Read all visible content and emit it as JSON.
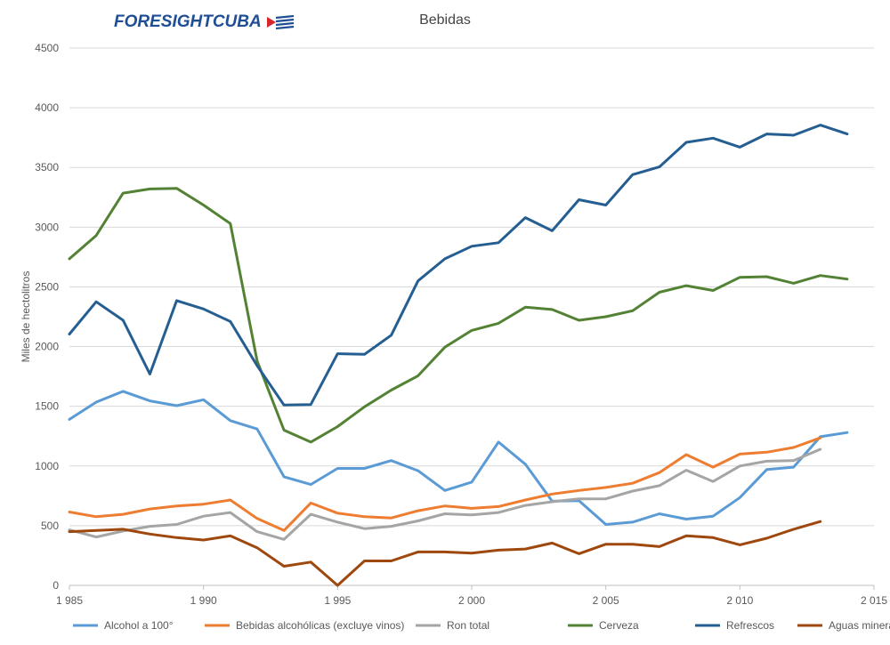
{
  "logo": {
    "text": "FORESIGHTCUBA"
  },
  "chart_data": {
    "type": "line",
    "title": "Bebidas",
    "xlabel": "",
    "ylabel": "Miles de hectolitros",
    "xlim": [
      1985,
      2015
    ],
    "ylim": [
      0,
      4500
    ],
    "x_ticks": [
      1985,
      1990,
      1995,
      2000,
      2005,
      2010,
      2015
    ],
    "x_tick_labels": [
      "1 985",
      "1 990",
      "1 995",
      "2 000",
      "2 005",
      "2 010",
      "2 015"
    ],
    "y_ticks": [
      0,
      500,
      1000,
      1500,
      2000,
      2500,
      3000,
      3500,
      4000,
      4500
    ],
    "grid": true,
    "legend_position": "bottom",
    "series": [
      {
        "name": "Alcohol a 100°",
        "color": "#5b9bd5",
        "x": [
          1985,
          1986,
          1987,
          1988,
          1989,
          1990,
          1991,
          1992,
          1993,
          1994,
          1995,
          1996,
          1997,
          1998,
          1999,
          2000,
          2001,
          2002,
          2003,
          2004,
          2005,
          2006,
          2007,
          2008,
          2009,
          2010,
          2011,
          2012,
          2013,
          2014
        ],
        "values": [
          1390,
          1535,
          1625,
          1545,
          1505,
          1555,
          1380,
          1310,
          910,
          845,
          980,
          980,
          1045,
          960,
          795,
          865,
          1200,
          1015,
          705,
          710,
          510,
          530,
          600,
          555,
          580,
          735,
          970,
          990,
          1245,
          1280
        ]
      },
      {
        "name": "Bebidas alcohólicas (excluye vinos)",
        "color": "#ed7d31",
        "x": [
          1985,
          1986,
          1987,
          1988,
          1989,
          1990,
          1991,
          1992,
          1993,
          1994,
          1995,
          1996,
          1997,
          1998,
          1999,
          2000,
          2001,
          2002,
          2003,
          2004,
          2005,
          2006,
          2007,
          2008,
          2009,
          2010,
          2011,
          2012,
          2013
        ],
        "values": [
          615,
          575,
          595,
          640,
          665,
          680,
          715,
          560,
          460,
          690,
          605,
          575,
          565,
          625,
          665,
          645,
          660,
          715,
          765,
          795,
          820,
          855,
          945,
          1095,
          990,
          1100,
          1115,
          1155,
          1235
        ]
      },
      {
        "name": "Ron total",
        "color": "#a5a5a5",
        "x": [
          1985,
          1986,
          1987,
          1988,
          1989,
          1990,
          1991,
          1992,
          1993,
          1994,
          1995,
          1996,
          1997,
          1998,
          1999,
          2000,
          2001,
          2002,
          2003,
          2004,
          2005,
          2006,
          2007,
          2008,
          2009,
          2010,
          2011,
          2012,
          2013
        ],
        "values": [
          465,
          405,
          455,
          495,
          510,
          580,
          610,
          450,
          385,
          595,
          530,
          475,
          495,
          540,
          600,
          590,
          610,
          670,
          700,
          725,
          725,
          790,
          835,
          965,
          870,
          1000,
          1040,
          1045,
          1140
        ]
      },
      {
        "name": "Cerveza",
        "color": "#548235",
        "x": [
          1985,
          1986,
          1987,
          1988,
          1989,
          1990,
          1991,
          1992,
          1993,
          1994,
          1995,
          1996,
          1997,
          1998,
          1999,
          2000,
          2001,
          2002,
          2003,
          2004,
          2005,
          2006,
          2007,
          2008,
          2009,
          2010,
          2011,
          2012,
          2013,
          2014
        ],
        "values": [
          2735,
          2930,
          3285,
          3320,
          3325,
          3185,
          3030,
          1880,
          1300,
          1200,
          1330,
          1495,
          1635,
          1755,
          1995,
          2135,
          2195,
          2330,
          2310,
          2220,
          2250,
          2300,
          2455,
          2510,
          2470,
          2580,
          2585,
          2530,
          2595,
          2565
        ]
      },
      {
        "name": "Refrescos",
        "color": "#255e91",
        "x": [
          1985,
          1986,
          1987,
          1988,
          1989,
          1990,
          1991,
          1992,
          1993,
          1994,
          1995,
          1996,
          1997,
          1998,
          1999,
          2000,
          2001,
          2002,
          2003,
          2004,
          2005,
          2006,
          2007,
          2008,
          2009,
          2010,
          2011,
          2012,
          2013,
          2014
        ],
        "values": [
          2105,
          2375,
          2220,
          1770,
          2385,
          2315,
          2210,
          1840,
          1510,
          1515,
          1940,
          1935,
          2095,
          2550,
          2735,
          2840,
          2870,
          3080,
          2970,
          3230,
          3185,
          3440,
          3505,
          3710,
          3745,
          3670,
          3780,
          3770,
          3855,
          3780
        ]
      },
      {
        "name": "Aguas minerales",
        "color": "#9e480e",
        "x": [
          1985,
          1986,
          1987,
          1988,
          1989,
          1990,
          1991,
          1992,
          1993,
          1994,
          1995,
          1996,
          1997,
          1998,
          1999,
          2000,
          2001,
          2002,
          2003,
          2004,
          2005,
          2006,
          2007,
          2008,
          2009,
          2010,
          2011,
          2012,
          2013
        ],
        "values": [
          450,
          460,
          470,
          430,
          400,
          380,
          415,
          315,
          160,
          195,
          0,
          205,
          205,
          280,
          280,
          270,
          295,
          305,
          355,
          265,
          345,
          345,
          325,
          415,
          400,
          340,
          395,
          470,
          535
        ]
      }
    ]
  }
}
